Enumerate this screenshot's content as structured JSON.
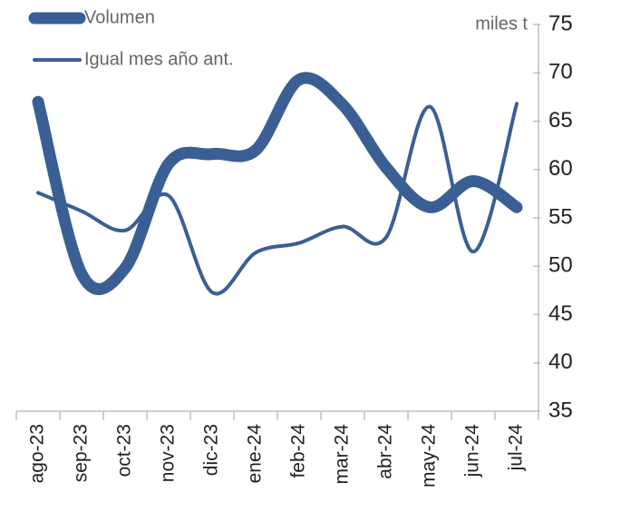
{
  "chart_data": {
    "type": "line",
    "y_axis_label": "miles t",
    "categories": [
      "ago-23",
      "sep-23",
      "oct-23",
      "nov-23",
      "dic-23",
      "ene-24",
      "feb-24",
      "mar-24",
      "abr-24",
      "may-24",
      "jun-24",
      "jul-24"
    ],
    "series": [
      {
        "name": "Volumen",
        "color": "#3a5f94",
        "values": [
          67,
          49.2,
          49.8,
          60.6,
          61.6,
          62,
          69.3,
          66.7,
          60.2,
          56.1,
          58.8,
          56.1
        ]
      },
      {
        "name": "Igual mes año ant.",
        "color": "#3a5f94",
        "values": [
          57.6,
          55.7,
          53.7,
          57.3,
          47.3,
          51.4,
          52.4,
          54.1,
          53,
          66.5,
          51.5,
          66.8
        ]
      }
    ],
    "ylim": [
      35,
      75
    ],
    "yticks": [
      35,
      40,
      45,
      50,
      55,
      60,
      65,
      70,
      75
    ],
    "smooth": true,
    "legend": "top-left"
  }
}
